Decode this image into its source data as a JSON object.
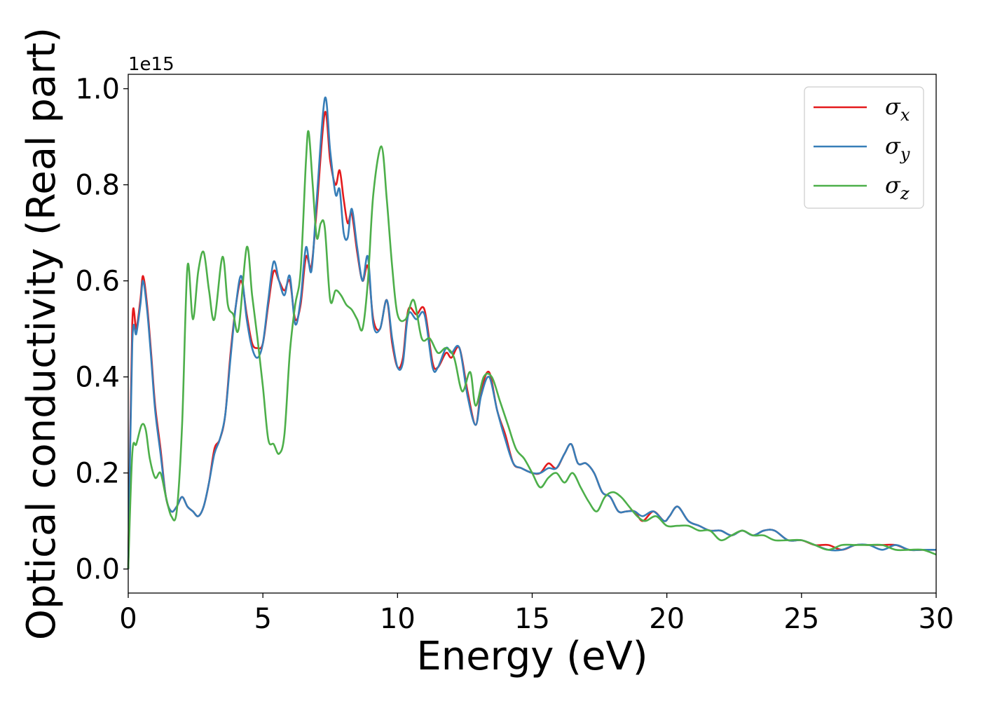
{
  "chart_data": {
    "type": "line",
    "xlabel": "Energy (eV)",
    "ylabel": "Optical conductivity (Real part)",
    "y_offset_text": "1e15",
    "y_scale": 1000000000000000.0,
    "xlim": [
      0,
      30
    ],
    "ylim": [
      -0.05,
      1.03
    ],
    "x_ticks": [
      0,
      5,
      10,
      15,
      20,
      25,
      30
    ],
    "x_tick_labels": [
      "0",
      "5",
      "10",
      "15",
      "20",
      "25",
      "30"
    ],
    "y_ticks": [
      0.0,
      0.2,
      0.4,
      0.6,
      0.8,
      1.0
    ],
    "y_tick_labels": [
      "0.0",
      "0.2",
      "0.4",
      "0.6",
      "0.8",
      "1.0"
    ],
    "grid": false,
    "legend_position": "top-right",
    "series": [
      {
        "name": "σx",
        "base": "σ",
        "sub": "x",
        "color": "#e41a1c",
        "x": [
          0,
          0.15,
          0.3,
          0.45,
          0.55,
          0.7,
          0.85,
          1.0,
          1.2,
          1.4,
          1.6,
          1.8,
          2.0,
          2.2,
          2.4,
          2.6,
          2.8,
          3.0,
          3.2,
          3.4,
          3.6,
          3.8,
          4.0,
          4.2,
          4.4,
          4.6,
          4.8,
          5.0,
          5.2,
          5.4,
          5.6,
          5.8,
          6.0,
          6.2,
          6.4,
          6.6,
          6.8,
          7.0,
          7.3,
          7.5,
          7.7,
          7.85,
          8.0,
          8.15,
          8.3,
          8.5,
          8.7,
          8.9,
          9.1,
          9.35,
          9.6,
          9.8,
          10.0,
          10.2,
          10.4,
          10.7,
          11.0,
          11.3,
          11.5,
          11.8,
          12.0,
          12.3,
          12.6,
          12.9,
          13.1,
          13.4,
          13.7,
          14.0,
          14.3,
          14.6,
          15.0,
          15.3,
          15.6,
          15.9,
          16.2,
          16.45,
          16.7,
          17.0,
          17.3,
          17.6,
          17.9,
          18.2,
          18.5,
          18.8,
          19.1,
          19.5,
          19.9,
          20.1,
          20.4,
          20.8,
          21.2,
          21.6,
          22.0,
          22.4,
          22.8,
          23.2,
          23.6,
          24.0,
          24.5,
          25.0,
          25.5,
          26.0,
          26.5,
          27.0,
          27.5,
          28.0,
          28.5,
          29.0,
          29.5,
          30
        ],
        "y": [
          0.0,
          0.51,
          0.5,
          0.56,
          0.61,
          0.55,
          0.45,
          0.34,
          0.25,
          0.15,
          0.12,
          0.13,
          0.15,
          0.13,
          0.12,
          0.11,
          0.13,
          0.18,
          0.25,
          0.27,
          0.32,
          0.45,
          0.55,
          0.6,
          0.53,
          0.47,
          0.46,
          0.47,
          0.55,
          0.62,
          0.6,
          0.58,
          0.6,
          0.52,
          0.55,
          0.65,
          0.63,
          0.75,
          0.95,
          0.85,
          0.8,
          0.83,
          0.77,
          0.72,
          0.74,
          0.66,
          0.6,
          0.63,
          0.52,
          0.5,
          0.56,
          0.47,
          0.42,
          0.44,
          0.54,
          0.53,
          0.54,
          0.43,
          0.42,
          0.45,
          0.44,
          0.46,
          0.37,
          0.3,
          0.37,
          0.41,
          0.33,
          0.28,
          0.22,
          0.21,
          0.2,
          0.2,
          0.22,
          0.21,
          0.24,
          0.26,
          0.22,
          0.22,
          0.2,
          0.16,
          0.15,
          0.12,
          0.12,
          0.12,
          0.1,
          0.12,
          0.1,
          0.11,
          0.13,
          0.1,
          0.09,
          0.08,
          0.08,
          0.07,
          0.08,
          0.07,
          0.08,
          0.08,
          0.06,
          0.06,
          0.05,
          0.05,
          0.04,
          0.05,
          0.05,
          0.05,
          0.05,
          0.04,
          0.04,
          0.04
        ]
      },
      {
        "name": "σy",
        "base": "σ",
        "sub": "y",
        "color": "#377eb8",
        "x": [
          0,
          0.15,
          0.3,
          0.45,
          0.55,
          0.7,
          0.85,
          1.0,
          1.2,
          1.4,
          1.6,
          1.8,
          2.0,
          2.2,
          2.4,
          2.6,
          2.8,
          3.0,
          3.2,
          3.4,
          3.6,
          3.8,
          4.0,
          4.2,
          4.4,
          4.6,
          4.8,
          5.0,
          5.2,
          5.4,
          5.6,
          5.8,
          6.0,
          6.2,
          6.4,
          6.6,
          6.8,
          7.0,
          7.3,
          7.5,
          7.7,
          7.85,
          8.0,
          8.15,
          8.3,
          8.5,
          8.7,
          8.9,
          9.1,
          9.35,
          9.6,
          9.8,
          10.0,
          10.2,
          10.4,
          10.7,
          11.0,
          11.3,
          11.5,
          11.8,
          12.0,
          12.3,
          12.6,
          12.9,
          13.1,
          13.4,
          13.7,
          14.0,
          14.3,
          14.6,
          15.0,
          15.3,
          15.6,
          15.9,
          16.2,
          16.45,
          16.7,
          17.0,
          17.3,
          17.6,
          17.9,
          18.2,
          18.5,
          18.8,
          19.1,
          19.5,
          19.9,
          20.1,
          20.4,
          20.8,
          21.2,
          21.6,
          22.0,
          22.4,
          22.8,
          23.2,
          23.6,
          24.0,
          24.5,
          25.0,
          25.5,
          26.0,
          26.5,
          27.0,
          27.5,
          28.0,
          28.5,
          29.0,
          29.5,
          30
        ],
        "y": [
          0.0,
          0.47,
          0.49,
          0.55,
          0.6,
          0.54,
          0.44,
          0.33,
          0.24,
          0.15,
          0.12,
          0.13,
          0.15,
          0.13,
          0.12,
          0.11,
          0.13,
          0.18,
          0.24,
          0.27,
          0.32,
          0.44,
          0.55,
          0.61,
          0.52,
          0.46,
          0.44,
          0.47,
          0.56,
          0.64,
          0.6,
          0.57,
          0.61,
          0.51,
          0.56,
          0.67,
          0.62,
          0.77,
          0.98,
          0.87,
          0.78,
          0.79,
          0.7,
          0.69,
          0.75,
          0.67,
          0.6,
          0.65,
          0.51,
          0.5,
          0.56,
          0.48,
          0.42,
          0.43,
          0.53,
          0.52,
          0.53,
          0.42,
          0.42,
          0.46,
          0.45,
          0.46,
          0.36,
          0.3,
          0.36,
          0.4,
          0.33,
          0.27,
          0.22,
          0.21,
          0.2,
          0.2,
          0.21,
          0.21,
          0.24,
          0.26,
          0.22,
          0.22,
          0.2,
          0.16,
          0.15,
          0.12,
          0.12,
          0.12,
          0.11,
          0.12,
          0.1,
          0.11,
          0.13,
          0.1,
          0.09,
          0.08,
          0.08,
          0.07,
          0.08,
          0.07,
          0.08,
          0.08,
          0.06,
          0.06,
          0.05,
          0.04,
          0.04,
          0.05,
          0.05,
          0.04,
          0.05,
          0.04,
          0.04,
          0.04
        ]
      },
      {
        "name": "σz",
        "base": "σ",
        "sub": "z",
        "color": "#4daf4a",
        "x": [
          0,
          0.15,
          0.3,
          0.5,
          0.65,
          0.8,
          1.0,
          1.2,
          1.4,
          1.6,
          1.8,
          2.0,
          2.2,
          2.4,
          2.6,
          2.8,
          3.0,
          3.2,
          3.5,
          3.7,
          3.9,
          4.1,
          4.4,
          4.6,
          4.8,
          5.0,
          5.2,
          5.4,
          5.6,
          5.8,
          6.0,
          6.2,
          6.4,
          6.6,
          6.7,
          6.85,
          7.0,
          7.15,
          7.3,
          7.5,
          7.7,
          7.9,
          8.1,
          8.3,
          8.5,
          8.7,
          8.9,
          9.1,
          9.4,
          9.6,
          9.8,
          10.0,
          10.3,
          10.6,
          10.9,
          11.2,
          11.5,
          11.8,
          12.1,
          12.4,
          12.7,
          12.9,
          13.2,
          13.5,
          13.8,
          14.1,
          14.4,
          14.7,
          15.0,
          15.3,
          15.6,
          15.9,
          16.2,
          16.5,
          16.8,
          17.1,
          17.4,
          17.7,
          18.0,
          18.3,
          18.6,
          18.9,
          19.2,
          19.6,
          20.0,
          20.4,
          20.8,
          21.2,
          21.6,
          22.0,
          22.4,
          22.8,
          23.2,
          23.6,
          24.0,
          24.5,
          25.0,
          25.5,
          26.0,
          26.5,
          27.0,
          27.5,
          28.0,
          28.5,
          29.0,
          29.5,
          30
        ],
        "y": [
          0.0,
          0.24,
          0.26,
          0.3,
          0.29,
          0.23,
          0.19,
          0.2,
          0.15,
          0.11,
          0.12,
          0.3,
          0.63,
          0.52,
          0.62,
          0.66,
          0.58,
          0.52,
          0.65,
          0.55,
          0.53,
          0.5,
          0.67,
          0.57,
          0.48,
          0.38,
          0.27,
          0.26,
          0.24,
          0.28,
          0.45,
          0.55,
          0.62,
          0.85,
          0.91,
          0.8,
          0.69,
          0.72,
          0.71,
          0.56,
          0.58,
          0.57,
          0.55,
          0.54,
          0.52,
          0.5,
          0.6,
          0.78,
          0.88,
          0.77,
          0.63,
          0.53,
          0.52,
          0.56,
          0.48,
          0.48,
          0.45,
          0.46,
          0.44,
          0.37,
          0.41,
          0.34,
          0.4,
          0.4,
          0.35,
          0.3,
          0.25,
          0.23,
          0.2,
          0.17,
          0.19,
          0.2,
          0.18,
          0.2,
          0.17,
          0.14,
          0.12,
          0.15,
          0.16,
          0.15,
          0.13,
          0.11,
          0.1,
          0.11,
          0.09,
          0.09,
          0.09,
          0.08,
          0.08,
          0.06,
          0.07,
          0.08,
          0.07,
          0.07,
          0.06,
          0.06,
          0.06,
          0.05,
          0.04,
          0.05,
          0.05,
          0.05,
          0.05,
          0.04,
          0.04,
          0.04,
          0.03
        ]
      }
    ]
  }
}
